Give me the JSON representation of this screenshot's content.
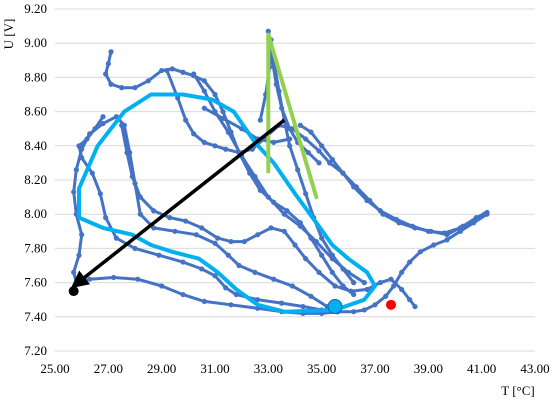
{
  "chart_data": {
    "type": "scatter",
    "xlabel": "T [°C]",
    "ylabel": "U [V]",
    "xlim": [
      25.0,
      43.0
    ],
    "ylim": [
      7.2,
      9.2
    ],
    "xticks": [
      "25.00",
      "27.00",
      "29.00",
      "31.00",
      "33.00",
      "35.00",
      "37.00",
      "39.00",
      "41.00",
      "43.00"
    ],
    "yticks": [
      "7.20",
      "7.40",
      "7.60",
      "7.80",
      "8.00",
      "8.20",
      "8.40",
      "8.60",
      "8.80",
      "9.00",
      "9.20"
    ],
    "grid": "horizontal",
    "colors": {
      "measured": "#4472c4",
      "smoothed": "#00b0f0",
      "triangle": "#92d050",
      "arrow": "#000000",
      "red_point": "#ff0000",
      "grid": "#d9d9d9"
    },
    "series": [
      {
        "style": "markers-line",
        "points": [
          [
            41.2,
            8.0
          ],
          [
            40.7,
            7.95
          ],
          [
            40.2,
            7.9
          ],
          [
            39.7,
            7.85
          ],
          [
            39.2,
            7.82
          ],
          [
            38.7,
            7.78
          ],
          [
            38.3,
            7.72
          ],
          [
            38.0,
            7.66
          ],
          [
            37.7,
            7.58
          ],
          [
            37.4,
            7.52
          ],
          [
            37.0,
            7.47
          ],
          [
            36.6,
            7.44
          ],
          [
            36.2,
            7.43
          ],
          [
            35.6,
            7.43
          ],
          [
            35.0,
            7.42
          ],
          [
            34.3,
            7.42
          ],
          [
            33.5,
            7.43
          ],
          [
            32.6,
            7.45
          ],
          [
            31.6,
            7.47
          ],
          [
            30.6,
            7.49
          ],
          [
            29.8,
            7.53
          ],
          [
            29.0,
            7.58
          ],
          [
            28.1,
            7.62
          ],
          [
            27.2,
            7.63
          ],
          [
            26.3,
            7.62
          ],
          [
            25.8,
            7.6
          ],
          [
            25.7,
            7.66
          ],
          [
            25.9,
            7.76
          ],
          [
            26.0,
            7.88
          ],
          [
            25.8,
            8.0
          ],
          [
            25.7,
            8.13
          ],
          [
            25.8,
            8.26
          ],
          [
            26.0,
            8.38
          ],
          [
            26.3,
            8.47
          ],
          [
            26.8,
            8.53
          ],
          [
            27.3,
            8.57
          ],
          [
            27.6,
            8.52
          ],
          [
            27.8,
            8.36
          ],
          [
            28.0,
            8.18
          ],
          [
            28.2,
            8.0
          ],
          [
            28.7,
            7.92
          ],
          [
            29.5,
            7.9
          ],
          [
            30.3,
            7.88
          ],
          [
            31.0,
            7.83
          ],
          [
            31.5,
            7.76
          ],
          [
            31.9,
            7.7
          ],
          [
            32.5,
            7.66
          ],
          [
            33.2,
            7.62
          ],
          [
            33.9,
            7.58
          ],
          [
            34.6,
            7.52
          ],
          [
            35.2,
            7.46
          ],
          [
            35.6,
            7.43
          ]
        ]
      },
      {
        "style": "markers-line",
        "points": [
          [
            26.8,
            8.57
          ],
          [
            26.5,
            8.5
          ],
          [
            26.2,
            8.44
          ],
          [
            25.9,
            8.4
          ],
          [
            26.0,
            8.33
          ],
          [
            26.4,
            8.24
          ],
          [
            26.7,
            8.12
          ],
          [
            26.9,
            7.98
          ],
          [
            27.3,
            7.86
          ],
          [
            28.0,
            7.8
          ],
          [
            28.9,
            7.76
          ],
          [
            29.8,
            7.72
          ],
          [
            30.5,
            7.68
          ],
          [
            31.0,
            7.64
          ],
          [
            31.4,
            7.57
          ],
          [
            31.8,
            7.53
          ],
          [
            32.6,
            7.5
          ],
          [
            33.5,
            7.48
          ],
          [
            34.3,
            7.46
          ],
          [
            35.0,
            7.44
          ],
          [
            35.6,
            7.43
          ]
        ]
      },
      {
        "style": "markers-line",
        "points": [
          [
            27.1,
            8.95
          ],
          [
            27.0,
            8.88
          ],
          [
            26.9,
            8.82
          ],
          [
            27.1,
            8.76
          ],
          [
            27.5,
            8.74
          ],
          [
            28.0,
            8.74
          ],
          [
            28.5,
            8.78
          ],
          [
            29.0,
            8.84
          ],
          [
            29.4,
            8.85
          ],
          [
            29.8,
            8.83
          ],
          [
            30.2,
            8.81
          ],
          [
            30.6,
            8.78
          ],
          [
            31.0,
            8.7
          ],
          [
            31.3,
            8.6
          ],
          [
            31.6,
            8.48
          ],
          [
            31.9,
            8.36
          ],
          [
            32.3,
            8.24
          ],
          [
            32.7,
            8.14
          ],
          [
            33.2,
            8.07
          ],
          [
            33.7,
            8.02
          ],
          [
            34.2,
            7.95
          ],
          [
            34.6,
            7.86
          ],
          [
            35.0,
            7.76
          ],
          [
            35.4,
            7.66
          ],
          [
            35.8,
            7.58
          ],
          [
            36.2,
            7.53
          ]
        ]
      },
      {
        "style": "markers-line",
        "points": [
          [
            29.2,
            8.84
          ],
          [
            29.6,
            8.68
          ],
          [
            29.9,
            8.55
          ],
          [
            30.2,
            8.47
          ],
          [
            30.6,
            8.42
          ],
          [
            31.0,
            8.4
          ],
          [
            31.4,
            8.38
          ],
          [
            31.9,
            8.36
          ],
          [
            32.4,
            8.38
          ],
          [
            32.9,
            8.45
          ],
          [
            33.4,
            8.52
          ],
          [
            33.9,
            8.5
          ],
          [
            34.4,
            8.44
          ],
          [
            34.9,
            8.37
          ],
          [
            35.3,
            8.3
          ],
          [
            35.8,
            8.24
          ],
          [
            36.3,
            8.16
          ],
          [
            36.8,
            8.08
          ],
          [
            37.3,
            8.0
          ],
          [
            37.9,
            7.95
          ],
          [
            38.5,
            7.92
          ],
          [
            39.1,
            7.9
          ],
          [
            39.7,
            7.88
          ],
          [
            40.3,
            7.93
          ],
          [
            40.8,
            7.98
          ],
          [
            41.2,
            8.01
          ]
        ]
      },
      {
        "style": "markers-line",
        "points": [
          [
            34.2,
            8.52
          ],
          [
            34.6,
            8.48
          ],
          [
            35.0,
            8.4
          ],
          [
            35.4,
            8.32
          ],
          [
            35.8,
            8.24
          ],
          [
            36.2,
            8.16
          ],
          [
            36.7,
            8.08
          ],
          [
            37.2,
            8.02
          ],
          [
            37.8,
            7.97
          ],
          [
            38.4,
            7.93
          ],
          [
            39.0,
            7.9
          ],
          [
            39.6,
            7.89
          ],
          [
            40.2,
            7.92
          ],
          [
            40.8,
            7.97
          ],
          [
            41.1,
            8.0
          ]
        ]
      },
      {
        "style": "markers-line",
        "points": [
          [
            33.0,
            9.07
          ],
          [
            33.2,
            8.9
          ],
          [
            33.4,
            8.72
          ],
          [
            33.6,
            8.55
          ],
          [
            33.8,
            8.4
          ],
          [
            34.1,
            8.26
          ],
          [
            34.4,
            8.12
          ],
          [
            34.7,
            7.98
          ],
          [
            35.0,
            7.86
          ],
          [
            35.4,
            7.76
          ],
          [
            35.8,
            7.68
          ],
          [
            36.2,
            7.6
          ]
        ]
      },
      {
        "style": "markers-line",
        "points": [
          [
            30.2,
            8.82
          ],
          [
            30.6,
            8.72
          ],
          [
            31.0,
            8.6
          ],
          [
            31.5,
            8.48
          ],
          [
            32.0,
            8.34
          ],
          [
            32.5,
            8.22
          ],
          [
            33.0,
            8.1
          ],
          [
            33.6,
            8.0
          ],
          [
            34.2,
            7.93
          ],
          [
            34.8,
            7.84
          ],
          [
            35.4,
            7.74
          ],
          [
            36.0,
            7.66
          ],
          [
            36.6,
            7.6
          ]
        ]
      },
      {
        "style": "markers-line",
        "points": [
          [
            27.5,
            8.52
          ],
          [
            27.7,
            8.36
          ],
          [
            27.9,
            8.22
          ],
          [
            28.2,
            8.1
          ],
          [
            28.7,
            8.02
          ],
          [
            29.3,
            7.98
          ],
          [
            29.9,
            7.96
          ],
          [
            30.5,
            7.92
          ],
          [
            31.1,
            7.86
          ],
          [
            31.6,
            7.84
          ],
          [
            32.1,
            7.84
          ],
          [
            32.6,
            7.88
          ],
          [
            33.1,
            7.92
          ],
          [
            33.6,
            7.9
          ],
          [
            34.0,
            7.82
          ],
          [
            34.4,
            7.74
          ],
          [
            34.9,
            7.66
          ],
          [
            35.5,
            7.58
          ],
          [
            36.1,
            7.55
          ],
          [
            36.7,
            7.56
          ],
          [
            37.2,
            7.6
          ],
          [
            37.6,
            7.62
          ],
          [
            38.0,
            7.56
          ],
          [
            38.3,
            7.5
          ],
          [
            38.5,
            7.46
          ]
        ]
      },
      {
        "style": "markers-line",
        "points": [
          [
            30.6,
            8.62
          ],
          [
            31.3,
            8.56
          ],
          [
            32.0,
            8.5
          ],
          [
            32.6,
            8.44
          ],
          [
            33.2,
            8.42
          ],
          [
            33.8,
            8.44
          ]
        ]
      },
      {
        "style": "markers-line",
        "points": [
          [
            32.7,
            8.55
          ],
          [
            32.9,
            8.7
          ],
          [
            33.05,
            8.86
          ],
          [
            33.1,
            9.02
          ],
          [
            33.15,
            8.9
          ],
          [
            33.3,
            8.76
          ],
          [
            33.5,
            8.62
          ],
          [
            33.8,
            8.5
          ],
          [
            34.1,
            8.42
          ],
          [
            34.5,
            8.36
          ],
          [
            34.9,
            8.3
          ]
        ]
      },
      {
        "style": "smooth-line",
        "points": [
          [
            33.6,
            7.43
          ],
          [
            35.5,
            7.44
          ],
          [
            36.6,
            7.5
          ],
          [
            37.0,
            7.58
          ],
          [
            36.7,
            7.66
          ],
          [
            36.0,
            7.74
          ],
          [
            35.4,
            7.82
          ],
          [
            34.8,
            7.95
          ],
          [
            34.0,
            8.12
          ],
          [
            33.2,
            8.3
          ],
          [
            32.5,
            8.42
          ],
          [
            31.7,
            8.6
          ],
          [
            30.9,
            8.67
          ],
          [
            29.8,
            8.7
          ],
          [
            28.6,
            8.7
          ],
          [
            27.6,
            8.6
          ],
          [
            26.6,
            8.4
          ],
          [
            25.9,
            8.15
          ],
          [
            25.9,
            7.98
          ],
          [
            26.8,
            7.92
          ],
          [
            27.9,
            7.88
          ],
          [
            28.6,
            7.82
          ],
          [
            29.4,
            7.78
          ],
          [
            30.4,
            7.74
          ],
          [
            31.1,
            7.66
          ],
          [
            31.8,
            7.56
          ],
          [
            32.6,
            7.47
          ],
          [
            33.6,
            7.43
          ]
        ]
      },
      {
        "style": "thick-line",
        "points": [
          [
            33.0,
            9.05
          ],
          [
            33.0,
            8.25
          ],
          [
            33.0,
            9.05
          ],
          [
            34.8,
            8.1
          ]
        ]
      }
    ],
    "annotations": [
      {
        "type": "arrow",
        "from": [
          33.6,
          8.55
        ],
        "to": [
          25.7,
          7.58
        ]
      },
      {
        "type": "point",
        "x": 25.7,
        "y": 7.55,
        "color": "#000000"
      },
      {
        "type": "point",
        "x": 35.5,
        "y": 7.46,
        "color": "#00b0f0"
      },
      {
        "type": "point",
        "x": 37.6,
        "y": 7.47,
        "color": "#ff0000"
      }
    ]
  }
}
